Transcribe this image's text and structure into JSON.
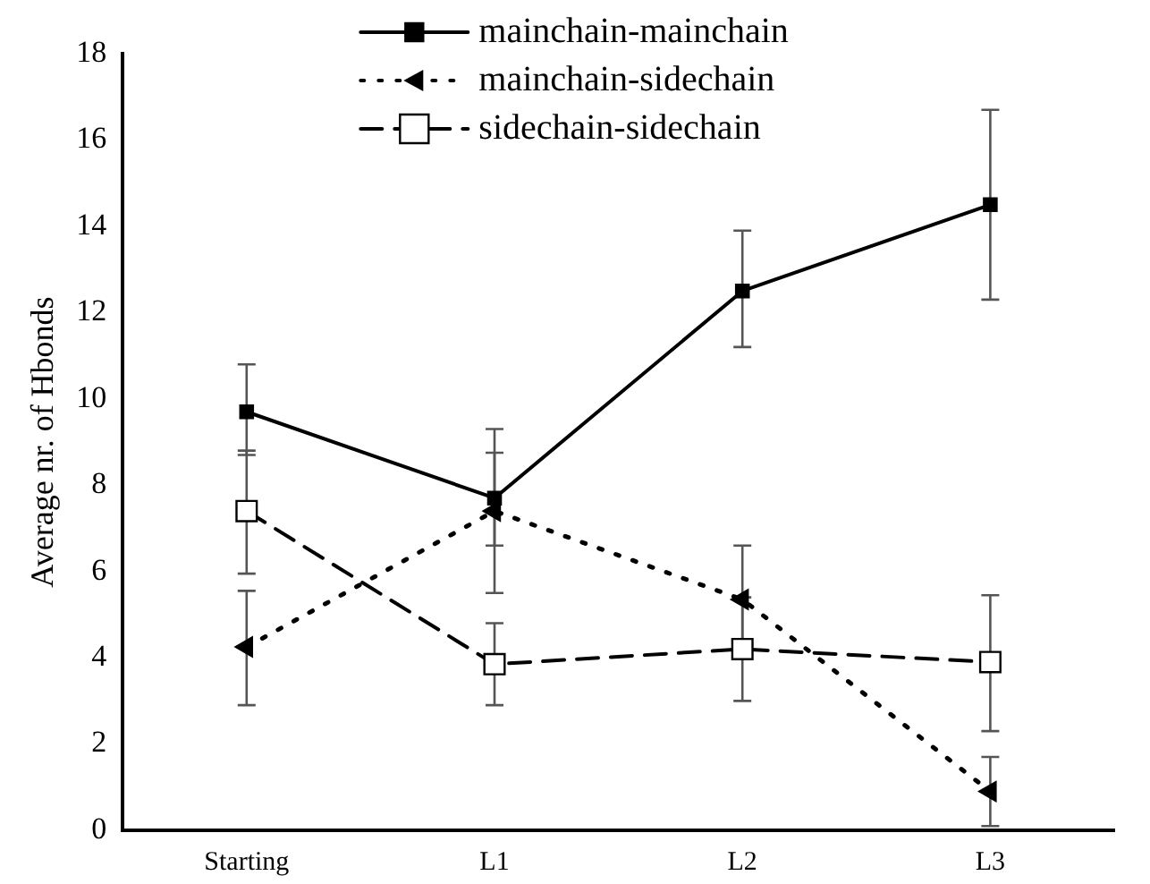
{
  "chart_data": {
    "type": "line",
    "ylabel": "Average nr. of Hbonds",
    "categories": [
      "Starting",
      "L1",
      "L2",
      "L3"
    ],
    "ylim": [
      0,
      18
    ],
    "yticks": [
      0,
      2,
      4,
      6,
      8,
      10,
      12,
      14,
      16,
      18
    ],
    "grid": false,
    "legend": "top",
    "series": [
      {
        "name": "mainchain-mainchain",
        "color": "#000000",
        "marker": "square",
        "line_style": "solid",
        "values": [
          9.7,
          7.7,
          12.5,
          14.5
        ],
        "errors": [
          [
            8.7,
            10.8
          ],
          [
            6.6,
            8.75
          ],
          [
            11.2,
            13.9
          ],
          [
            12.3,
            16.7
          ]
        ]
      },
      {
        "name": "mainchain-sidechain",
        "color": "#000000",
        "marker": "triangle",
        "line_style": "dotted",
        "values": [
          4.25,
          7.4,
          5.35,
          0.9
        ],
        "errors": [
          [
            2.9,
            5.55
          ],
          [
            5.5,
            9.3
          ],
          [
            4.1,
            6.6
          ],
          [
            0.1,
            1.7
          ]
        ]
      },
      {
        "name": "sidechain-sidechain",
        "color": "#000000",
        "marker": "square-open",
        "line_style": "dashed",
        "values": [
          7.4,
          3.85,
          4.2,
          3.9
        ],
        "errors": [
          [
            5.95,
            8.8
          ],
          [
            2.9,
            4.8
          ],
          [
            3.0,
            5.4
          ],
          [
            2.3,
            5.45
          ]
        ]
      }
    ]
  }
}
